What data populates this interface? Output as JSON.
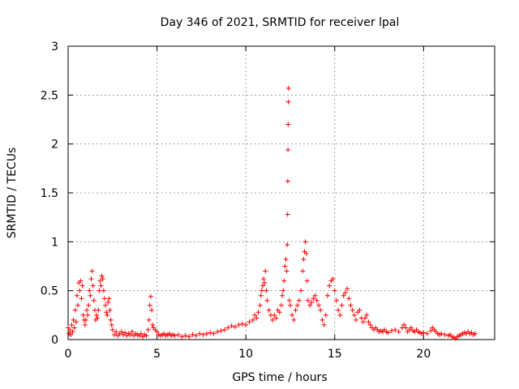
{
  "chart_data": {
    "type": "scatter",
    "title": "Day 346 of 2021, SRMTID for receiver lpal",
    "xlabel": "GPS time / hours",
    "ylabel": "SRMTID / TECUs",
    "xlim": [
      0,
      24
    ],
    "ylim": [
      0,
      3
    ],
    "grid": true,
    "xticks": [
      0,
      5,
      10,
      15,
      20
    ],
    "xtick_labels": [
      "0",
      "5",
      "10",
      "15",
      "20"
    ],
    "yticks": [
      0,
      0.5,
      1,
      1.5,
      2,
      2.5,
      3
    ],
    "ytick_labels": [
      "0",
      "0.5",
      "1",
      "1.5",
      "2",
      "2.5",
      "3"
    ],
    "marker": "+",
    "marker_color": "#ff0000",
    "series": [
      {
        "name": "SRMTID",
        "points": [
          [
            0.0,
            0.12
          ],
          [
            0.05,
            0.06
          ],
          [
            0.1,
            0.1
          ],
          [
            0.15,
            0.05
          ],
          [
            0.2,
            0.15
          ],
          [
            0.25,
            0.08
          ],
          [
            0.3,
            0.2
          ],
          [
            0.35,
            0.12
          ],
          [
            0.4,
            0.3
          ],
          [
            0.45,
            0.18
          ],
          [
            0.5,
            0.45
          ],
          [
            0.55,
            0.35
          ],
          [
            0.6,
            0.58
          ],
          [
            0.65,
            0.5
          ],
          [
            0.7,
            0.6
          ],
          [
            0.75,
            0.42
          ],
          [
            0.8,
            0.55
          ],
          [
            0.85,
            0.25
          ],
          [
            0.9,
            0.2
          ],
          [
            0.95,
            0.15
          ],
          [
            1.0,
            0.2
          ],
          [
            1.05,
            0.3
          ],
          [
            1.1,
            0.25
          ],
          [
            1.15,
            0.35
          ],
          [
            1.2,
            0.5
          ],
          [
            1.25,
            0.45
          ],
          [
            1.3,
            0.62
          ],
          [
            1.35,
            0.7
          ],
          [
            1.4,
            0.55
          ],
          [
            1.45,
            0.4
          ],
          [
            1.5,
            0.3
          ],
          [
            1.55,
            0.2
          ],
          [
            1.6,
            0.25
          ],
          [
            1.65,
            0.22
          ],
          [
            1.7,
            0.3
          ],
          [
            1.75,
            0.5
          ],
          [
            1.8,
            0.6
          ],
          [
            1.85,
            0.55
          ],
          [
            1.9,
            0.65
          ],
          [
            1.95,
            0.62
          ],
          [
            2.0,
            0.5
          ],
          [
            2.05,
            0.42
          ],
          [
            2.1,
            0.35
          ],
          [
            2.15,
            0.28
          ],
          [
            2.2,
            0.25
          ],
          [
            2.25,
            0.38
          ],
          [
            2.3,
            0.42
          ],
          [
            2.35,
            0.3
          ],
          [
            2.4,
            0.2
          ],
          [
            2.45,
            0.15
          ],
          [
            2.5,
            0.1
          ],
          [
            2.6,
            0.05
          ],
          [
            2.7,
            0.08
          ],
          [
            2.8,
            0.04
          ],
          [
            2.9,
            0.06
          ],
          [
            3.0,
            0.08
          ],
          [
            3.1,
            0.05
          ],
          [
            3.2,
            0.07
          ],
          [
            3.3,
            0.04
          ],
          [
            3.4,
            0.06
          ],
          [
            3.5,
            0.05
          ],
          [
            3.6,
            0.08
          ],
          [
            3.7,
            0.04
          ],
          [
            3.8,
            0.06
          ],
          [
            3.9,
            0.05
          ],
          [
            4.0,
            0.04
          ],
          [
            4.1,
            0.06
          ],
          [
            4.2,
            0.03
          ],
          [
            4.3,
            0.05
          ],
          [
            4.4,
            0.04
          ],
          [
            4.5,
            0.1
          ],
          [
            4.55,
            0.2
          ],
          [
            4.6,
            0.35
          ],
          [
            4.65,
            0.44
          ],
          [
            4.7,
            0.3
          ],
          [
            4.75,
            0.15
          ],
          [
            4.8,
            0.12
          ],
          [
            4.9,
            0.1
          ],
          [
            5.0,
            0.08
          ],
          [
            5.1,
            0.05
          ],
          [
            5.2,
            0.04
          ],
          [
            5.3,
            0.05
          ],
          [
            5.4,
            0.06
          ],
          [
            5.5,
            0.04
          ],
          [
            5.6,
            0.05
          ],
          [
            5.7,
            0.06
          ],
          [
            5.8,
            0.04
          ],
          [
            5.9,
            0.05
          ],
          [
            6.0,
            0.04
          ],
          [
            6.2,
            0.05
          ],
          [
            6.4,
            0.03
          ],
          [
            6.6,
            0.04
          ],
          [
            6.8,
            0.03
          ],
          [
            7.0,
            0.05
          ],
          [
            7.2,
            0.04
          ],
          [
            7.4,
            0.06
          ],
          [
            7.6,
            0.05
          ],
          [
            7.8,
            0.06
          ],
          [
            8.0,
            0.07
          ],
          [
            8.2,
            0.06
          ],
          [
            8.4,
            0.08
          ],
          [
            8.6,
            0.09
          ],
          [
            8.8,
            0.1
          ],
          [
            9.0,
            0.12
          ],
          [
            9.2,
            0.14
          ],
          [
            9.4,
            0.13
          ],
          [
            9.6,
            0.15
          ],
          [
            9.8,
            0.16
          ],
          [
            10.0,
            0.15
          ],
          [
            10.2,
            0.18
          ],
          [
            10.4,
            0.2
          ],
          [
            10.5,
            0.25
          ],
          [
            10.6,
            0.22
          ],
          [
            10.7,
            0.28
          ],
          [
            10.8,
            0.35
          ],
          [
            10.85,
            0.45
          ],
          [
            10.9,
            0.5
          ],
          [
            10.95,
            0.55
          ],
          [
            11.0,
            0.62
          ],
          [
            11.05,
            0.58
          ],
          [
            11.1,
            0.7
          ],
          [
            11.15,
            0.5
          ],
          [
            11.2,
            0.4
          ],
          [
            11.3,
            0.3
          ],
          [
            11.4,
            0.25
          ],
          [
            11.5,
            0.2
          ],
          [
            11.6,
            0.25
          ],
          [
            11.7,
            0.22
          ],
          [
            11.8,
            0.3
          ],
          [
            11.9,
            0.28
          ],
          [
            12.0,
            0.35
          ],
          [
            12.05,
            0.45
          ],
          [
            12.1,
            0.5
          ],
          [
            12.15,
            0.6
          ],
          [
            12.2,
            0.75
          ],
          [
            12.25,
            0.82
          ],
          [
            12.3,
            0.7
          ],
          [
            12.33,
            0.97
          ],
          [
            12.35,
            1.28
          ],
          [
            12.36,
            1.62
          ],
          [
            12.37,
            1.94
          ],
          [
            12.38,
            2.2
          ],
          [
            12.39,
            2.43
          ],
          [
            12.4,
            2.57
          ],
          [
            12.45,
            0.4
          ],
          [
            12.5,
            0.35
          ],
          [
            12.6,
            0.25
          ],
          [
            12.7,
            0.2
          ],
          [
            12.8,
            0.3
          ],
          [
            12.9,
            0.35
          ],
          [
            13.0,
            0.4
          ],
          [
            13.1,
            0.5
          ],
          [
            13.2,
            0.7
          ],
          [
            13.25,
            0.82
          ],
          [
            13.3,
            0.9
          ],
          [
            13.35,
            1.0
          ],
          [
            13.4,
            0.88
          ],
          [
            13.45,
            0.6
          ],
          [
            13.5,
            0.4
          ],
          [
            13.6,
            0.35
          ],
          [
            13.7,
            0.38
          ],
          [
            13.8,
            0.42
          ],
          [
            13.9,
            0.45
          ],
          [
            14.0,
            0.4
          ],
          [
            14.1,
            0.35
          ],
          [
            14.2,
            0.3
          ],
          [
            14.3,
            0.2
          ],
          [
            14.4,
            0.15
          ],
          [
            14.5,
            0.25
          ],
          [
            14.6,
            0.45
          ],
          [
            14.7,
            0.55
          ],
          [
            14.8,
            0.6
          ],
          [
            14.9,
            0.62
          ],
          [
            15.0,
            0.5
          ],
          [
            15.1,
            0.4
          ],
          [
            15.2,
            0.3
          ],
          [
            15.3,
            0.25
          ],
          [
            15.4,
            0.35
          ],
          [
            15.5,
            0.45
          ],
          [
            15.6,
            0.48
          ],
          [
            15.7,
            0.52
          ],
          [
            15.8,
            0.42
          ],
          [
            15.9,
            0.35
          ],
          [
            16.0,
            0.3
          ],
          [
            16.1,
            0.25
          ],
          [
            16.2,
            0.2
          ],
          [
            16.3,
            0.28
          ],
          [
            16.4,
            0.3
          ],
          [
            16.5,
            0.22
          ],
          [
            16.6,
            0.18
          ],
          [
            16.7,
            0.22
          ],
          [
            16.8,
            0.25
          ],
          [
            16.9,
            0.18
          ],
          [
            17.0,
            0.15
          ],
          [
            17.1,
            0.12
          ],
          [
            17.2,
            0.1
          ],
          [
            17.3,
            0.12
          ],
          [
            17.4,
            0.1
          ],
          [
            17.5,
            0.08
          ],
          [
            17.6,
            0.09
          ],
          [
            17.7,
            0.08
          ],
          [
            17.8,
            0.1
          ],
          [
            17.9,
            0.08
          ],
          [
            18.0,
            0.07
          ],
          [
            18.2,
            0.09
          ],
          [
            18.4,
            0.1
          ],
          [
            18.6,
            0.08
          ],
          [
            18.8,
            0.12
          ],
          [
            18.9,
            0.15
          ],
          [
            19.0,
            0.12
          ],
          [
            19.1,
            0.08
          ],
          [
            19.2,
            0.1
          ],
          [
            19.3,
            0.12
          ],
          [
            19.4,
            0.09
          ],
          [
            19.5,
            0.08
          ],
          [
            19.6,
            0.1
          ],
          [
            19.7,
            0.08
          ],
          [
            19.8,
            0.07
          ],
          [
            19.9,
            0.06
          ],
          [
            20.0,
            0.07
          ],
          [
            20.2,
            0.06
          ],
          [
            20.4,
            0.09
          ],
          [
            20.5,
            0.12
          ],
          [
            20.6,
            0.1
          ],
          [
            20.7,
            0.08
          ],
          [
            20.8,
            0.06
          ],
          [
            20.9,
            0.05
          ],
          [
            21.0,
            0.06
          ],
          [
            21.2,
            0.05
          ],
          [
            21.4,
            0.04
          ],
          [
            21.5,
            0.05
          ],
          [
            21.6,
            0.03
          ],
          [
            21.7,
            0.02
          ],
          [
            21.8,
            0.01
          ],
          [
            21.9,
            0.03
          ],
          [
            22.0,
            0.04
          ],
          [
            22.1,
            0.05
          ],
          [
            22.2,
            0.06
          ],
          [
            22.3,
            0.07
          ],
          [
            22.4,
            0.06
          ],
          [
            22.5,
            0.08
          ],
          [
            22.6,
            0.06
          ],
          [
            22.7,
            0.07
          ],
          [
            22.8,
            0.05
          ],
          [
            22.9,
            0.06
          ]
        ]
      }
    ]
  }
}
